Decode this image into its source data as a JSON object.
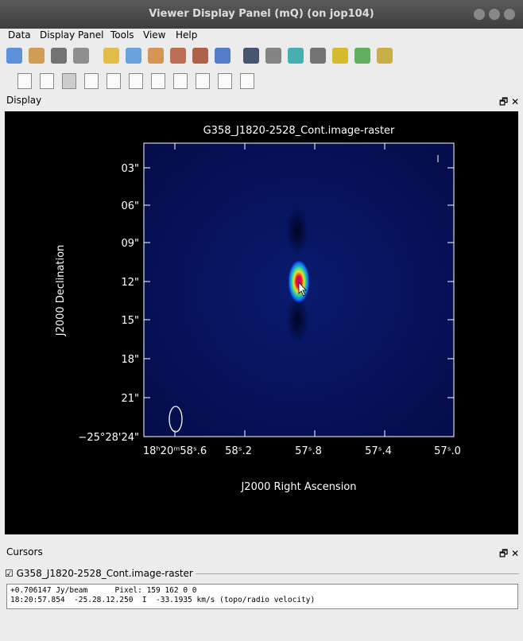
{
  "window": {
    "title": "Viewer Display Panel (mQ) (on jop104)"
  },
  "menu": [
    "Data",
    "Display Panel",
    "Tools",
    "View",
    "Help"
  ],
  "display_panel": {
    "label": "Display",
    "plot": {
      "title": "G358_J1820-2528_Cont.image-raster",
      "y_label": "J2000 Declination",
      "x_label": "J2000 Right Ascension",
      "y_ticks": [
        "03\"",
        "06\"",
        "09\"",
        "12\"",
        "15\"",
        "18\"",
        "21\"",
        "−25°28'24\""
      ],
      "x_ticks": [
        "18ʰ20ᵐ58ˢ.6",
        "58ˢ.2",
        "57ˢ.8",
        "57ˢ.4",
        "57ˢ.0"
      ]
    }
  },
  "cursors_panel": {
    "label": "Cursors",
    "image_name": "G358_J1820-2528_Cont.image-raster",
    "lines": [
      "+0.706147 Jy/beam      Pixel: 159 162 0 0",
      "18:20:57.854  -25.28.12.250  I  -33.1935 km/s (topo/radio velocity)"
    ]
  }
}
